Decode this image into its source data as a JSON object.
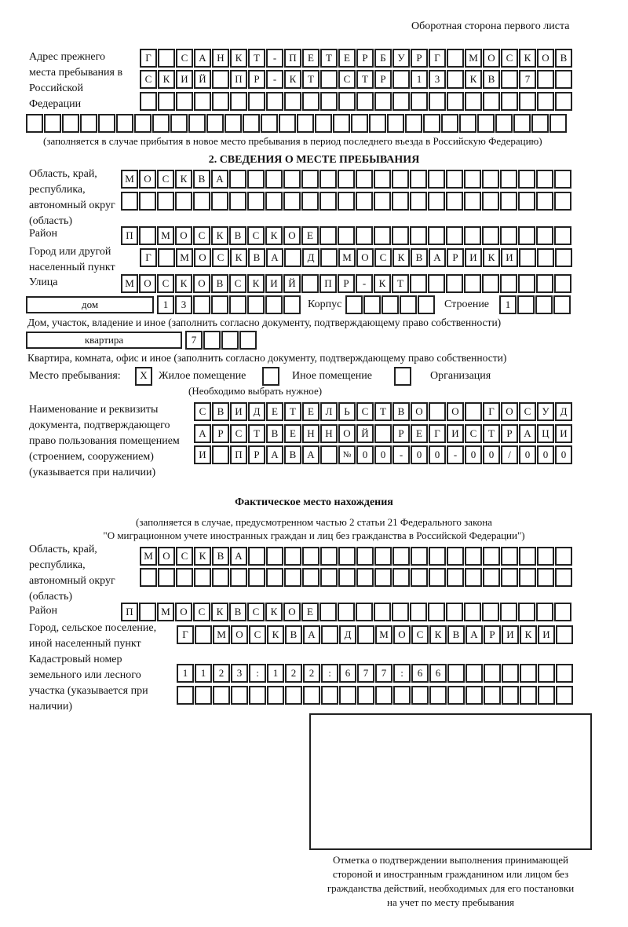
{
  "header": {
    "page_side": "Оборотная сторона первого листа"
  },
  "previous_address": {
    "label": "Адрес прежнего места пребывания в Российской Федерации",
    "rows": [
      "Г САНКТ-ПЕТЕРБУРГ МОСКОВ",
      "СКИЙ ПР-КТ СТР 13 КВ 7",
      "",
      ""
    ],
    "note": "(заполняется в случае прибытия в новое место пребывания в период последнего въезда в Российскую Федерацию)"
  },
  "section2": {
    "title": "2. СВЕДЕНИЯ О МЕСТЕ ПРЕБЫВАНИЯ",
    "region_label": "Область, край, республика, автономный округ (область)",
    "region_rows": [
      "МОСКВА",
      ""
    ],
    "district_label": "Район",
    "district": "П МОСКВСКОЕ",
    "city_label": "Город или другой населенный пункт",
    "city": "Г МОСКВА Д МОСКВАРИКИ",
    "street_label": "Улица",
    "street": "МОСКОВСКИЙ ПР-КТ",
    "house_type": "дом",
    "house": "13",
    "korpus_label": "Корпус",
    "korpus": "",
    "building_label": "Строение",
    "building": "1",
    "house_note": "Дом, участок, владение и иное (заполнить согласно документу, подтверждающему право собственности)",
    "apt_type": "квартира",
    "apt": "7",
    "apt_note": "Квартира, комната, офис и иное (заполнить согласно документу, подтверждающему право собственности)",
    "place_label": "Место пребывания:",
    "place_options": [
      {
        "label": "Жилое помещение",
        "mark": "X"
      },
      {
        "label": "Иное помещение",
        "mark": ""
      },
      {
        "label": "Организация",
        "mark": ""
      }
    ],
    "place_hint": "(Необходимо выбрать нужное)",
    "doc_label": "Наименование и реквизиты документа, подтверждающего право пользования помещением (строением, сооружением) (указывается при наличии)",
    "doc_rows": [
      "СВИДЕТЕЛЬСТВО О ГОСУД",
      "АРСТВЕННОЙ РЕГИСТРАЦИ",
      "И ПРАВА №00-00-00/000"
    ]
  },
  "actual": {
    "title": "Фактическое место нахождения",
    "note1": "(заполняется в случае, предусмотренном частью 2 статьи 21 Федерального закона",
    "note2": "\"О миграционном учете иностранных граждан и лиц без гражданства в Российской Федерации\")",
    "region_label": "Область, край, республика, автономный округ (область)",
    "region_rows": [
      "МОСКВА",
      ""
    ],
    "district_label": "Район",
    "district": "П МОСКВСКОЕ",
    "city_label": "Город, сельское поселение, иной населенный пункт",
    "city": "Г МОСКВА Д МОСКВАРИКИ",
    "cadastral_label": "Кадастровый номер земельного или лесного участка (указывается при наличии)",
    "cadastral_rows": [
      "1123:122:677:66",
      ""
    ]
  },
  "confirmation": {
    "caption": [
      "Отметка о подтверждении выполнения принимающей",
      "стороной и иностранным гражданином или лицом без",
      "гражданства действий, необходимых для его постановки",
      "на учет по месту пребывания"
    ]
  }
}
